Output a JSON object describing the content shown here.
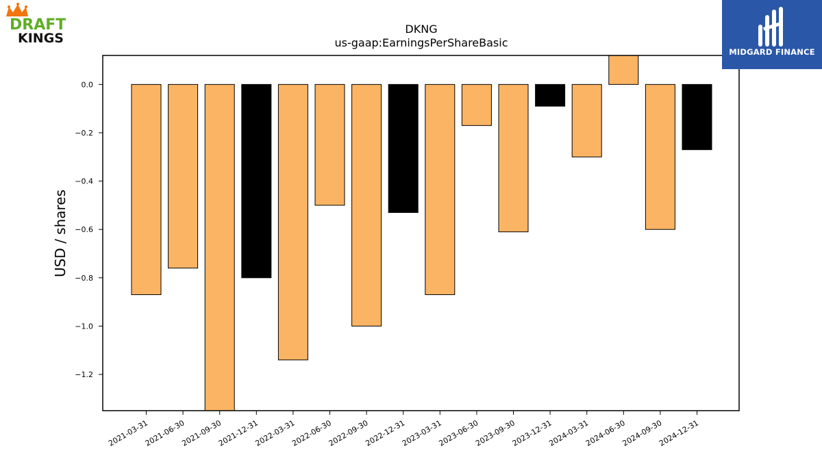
{
  "brand": {
    "left_logo_text": [
      "DRAFT",
      "KINGS"
    ],
    "right_logo_text": "MIDGARD FINANCE",
    "right_logo_bg": "#2a57a8"
  },
  "chart_data": {
    "type": "bar",
    "title": "DKNG",
    "subtitle": "us-gaap:EarningsPerShareBasic",
    "xlabel": "",
    "ylabel": "USD / shares",
    "ylim": [
      -1.35,
      0.12
    ],
    "yticks": [
      0.0,
      -0.2,
      -0.4,
      -0.6,
      -0.8,
      -1.0,
      -1.2
    ],
    "ytick_labels": [
      "0.0",
      "−0.2",
      "−0.4",
      "−0.6",
      "−0.8",
      "−1.0",
      "−1.2"
    ],
    "grid": false,
    "legend": "none",
    "colors": {
      "quarter": "#fbb464",
      "annual": "#000000",
      "edge": "#000000"
    },
    "categories": [
      "2021-03-31",
      "2021-06-30",
      "2021-09-30",
      "2021-12-31",
      "2022-03-31",
      "2022-06-30",
      "2022-09-30",
      "2022-12-31",
      "2023-03-31",
      "2023-06-30",
      "2023-09-30",
      "2023-12-31",
      "2024-03-31",
      "2024-06-30",
      "2024-09-30",
      "2024-12-31"
    ],
    "values": [
      -0.87,
      -0.76,
      -1.35,
      -0.8,
      -1.14,
      -0.5,
      -1.0,
      -0.53,
      -0.87,
      -0.17,
      -0.61,
      -0.09,
      -0.3,
      0.12,
      -0.6,
      -0.27
    ],
    "bar_colors": [
      "quarter",
      "quarter",
      "quarter",
      "annual",
      "quarter",
      "quarter",
      "quarter",
      "annual",
      "quarter",
      "quarter",
      "quarter",
      "annual",
      "quarter",
      "quarter",
      "quarter",
      "annual"
    ]
  }
}
